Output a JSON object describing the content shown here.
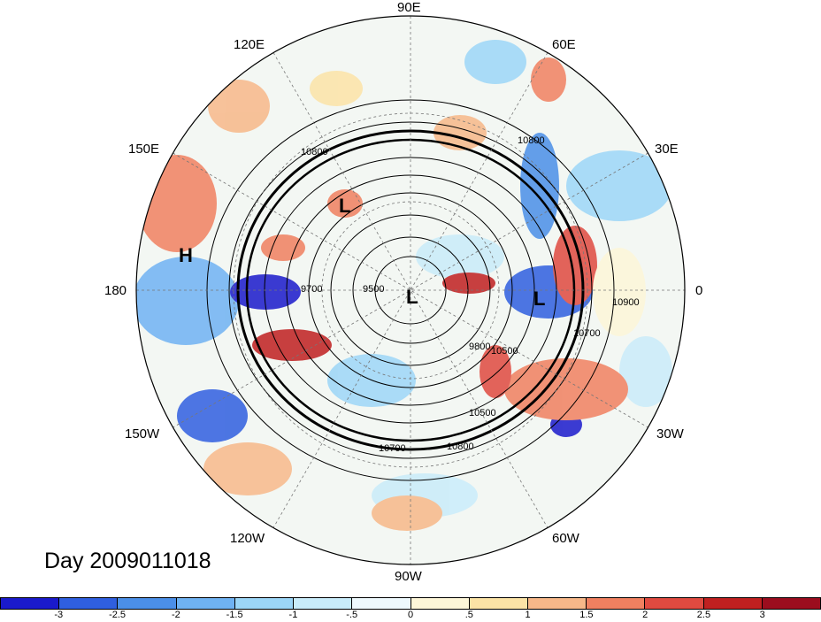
{
  "title": "Day 2009011018",
  "lon_labels": [
    "90E",
    "60E",
    "30E",
    "0",
    "30W",
    "60W",
    "90W",
    "120W",
    "150W",
    "180",
    "150E",
    "120E"
  ],
  "center_labels": [
    {
      "text": "L",
      "kind": "low"
    },
    {
      "text": "L",
      "kind": "low"
    },
    {
      "text": "L",
      "kind": "low"
    },
    {
      "text": "H",
      "kind": "high"
    }
  ],
  "contour_labels": [
    "10800",
    "10800",
    "9700",
    "9500",
    "9800",
    "10500",
    "10700",
    "10700",
    "10800",
    "10900",
    "10500"
  ],
  "colorbar": {
    "ticks": [
      "-3",
      "-2.5",
      "-2",
      "-1.5",
      "-1",
      "-.5",
      "0",
      ".5",
      "1",
      "1.5",
      "2",
      "2.5",
      "3"
    ],
    "colors": [
      "#1a1acc",
      "#2f5fe0",
      "#4b8fe8",
      "#6fb2f2",
      "#9cd6f7",
      "#c9ecfa",
      "#eef9fd",
      "#fdf6d8",
      "#fbe3a6",
      "#f7b889",
      "#f08060",
      "#e04a40",
      "#c02020",
      "#9b0d1e"
    ]
  },
  "palette": {
    "neg_strong": "#1a1acc",
    "neg": "#4b8fe8",
    "neutral": "#f6f9f6",
    "pos": "#e04a40",
    "pos_strong": "#9b0d1e"
  }
}
